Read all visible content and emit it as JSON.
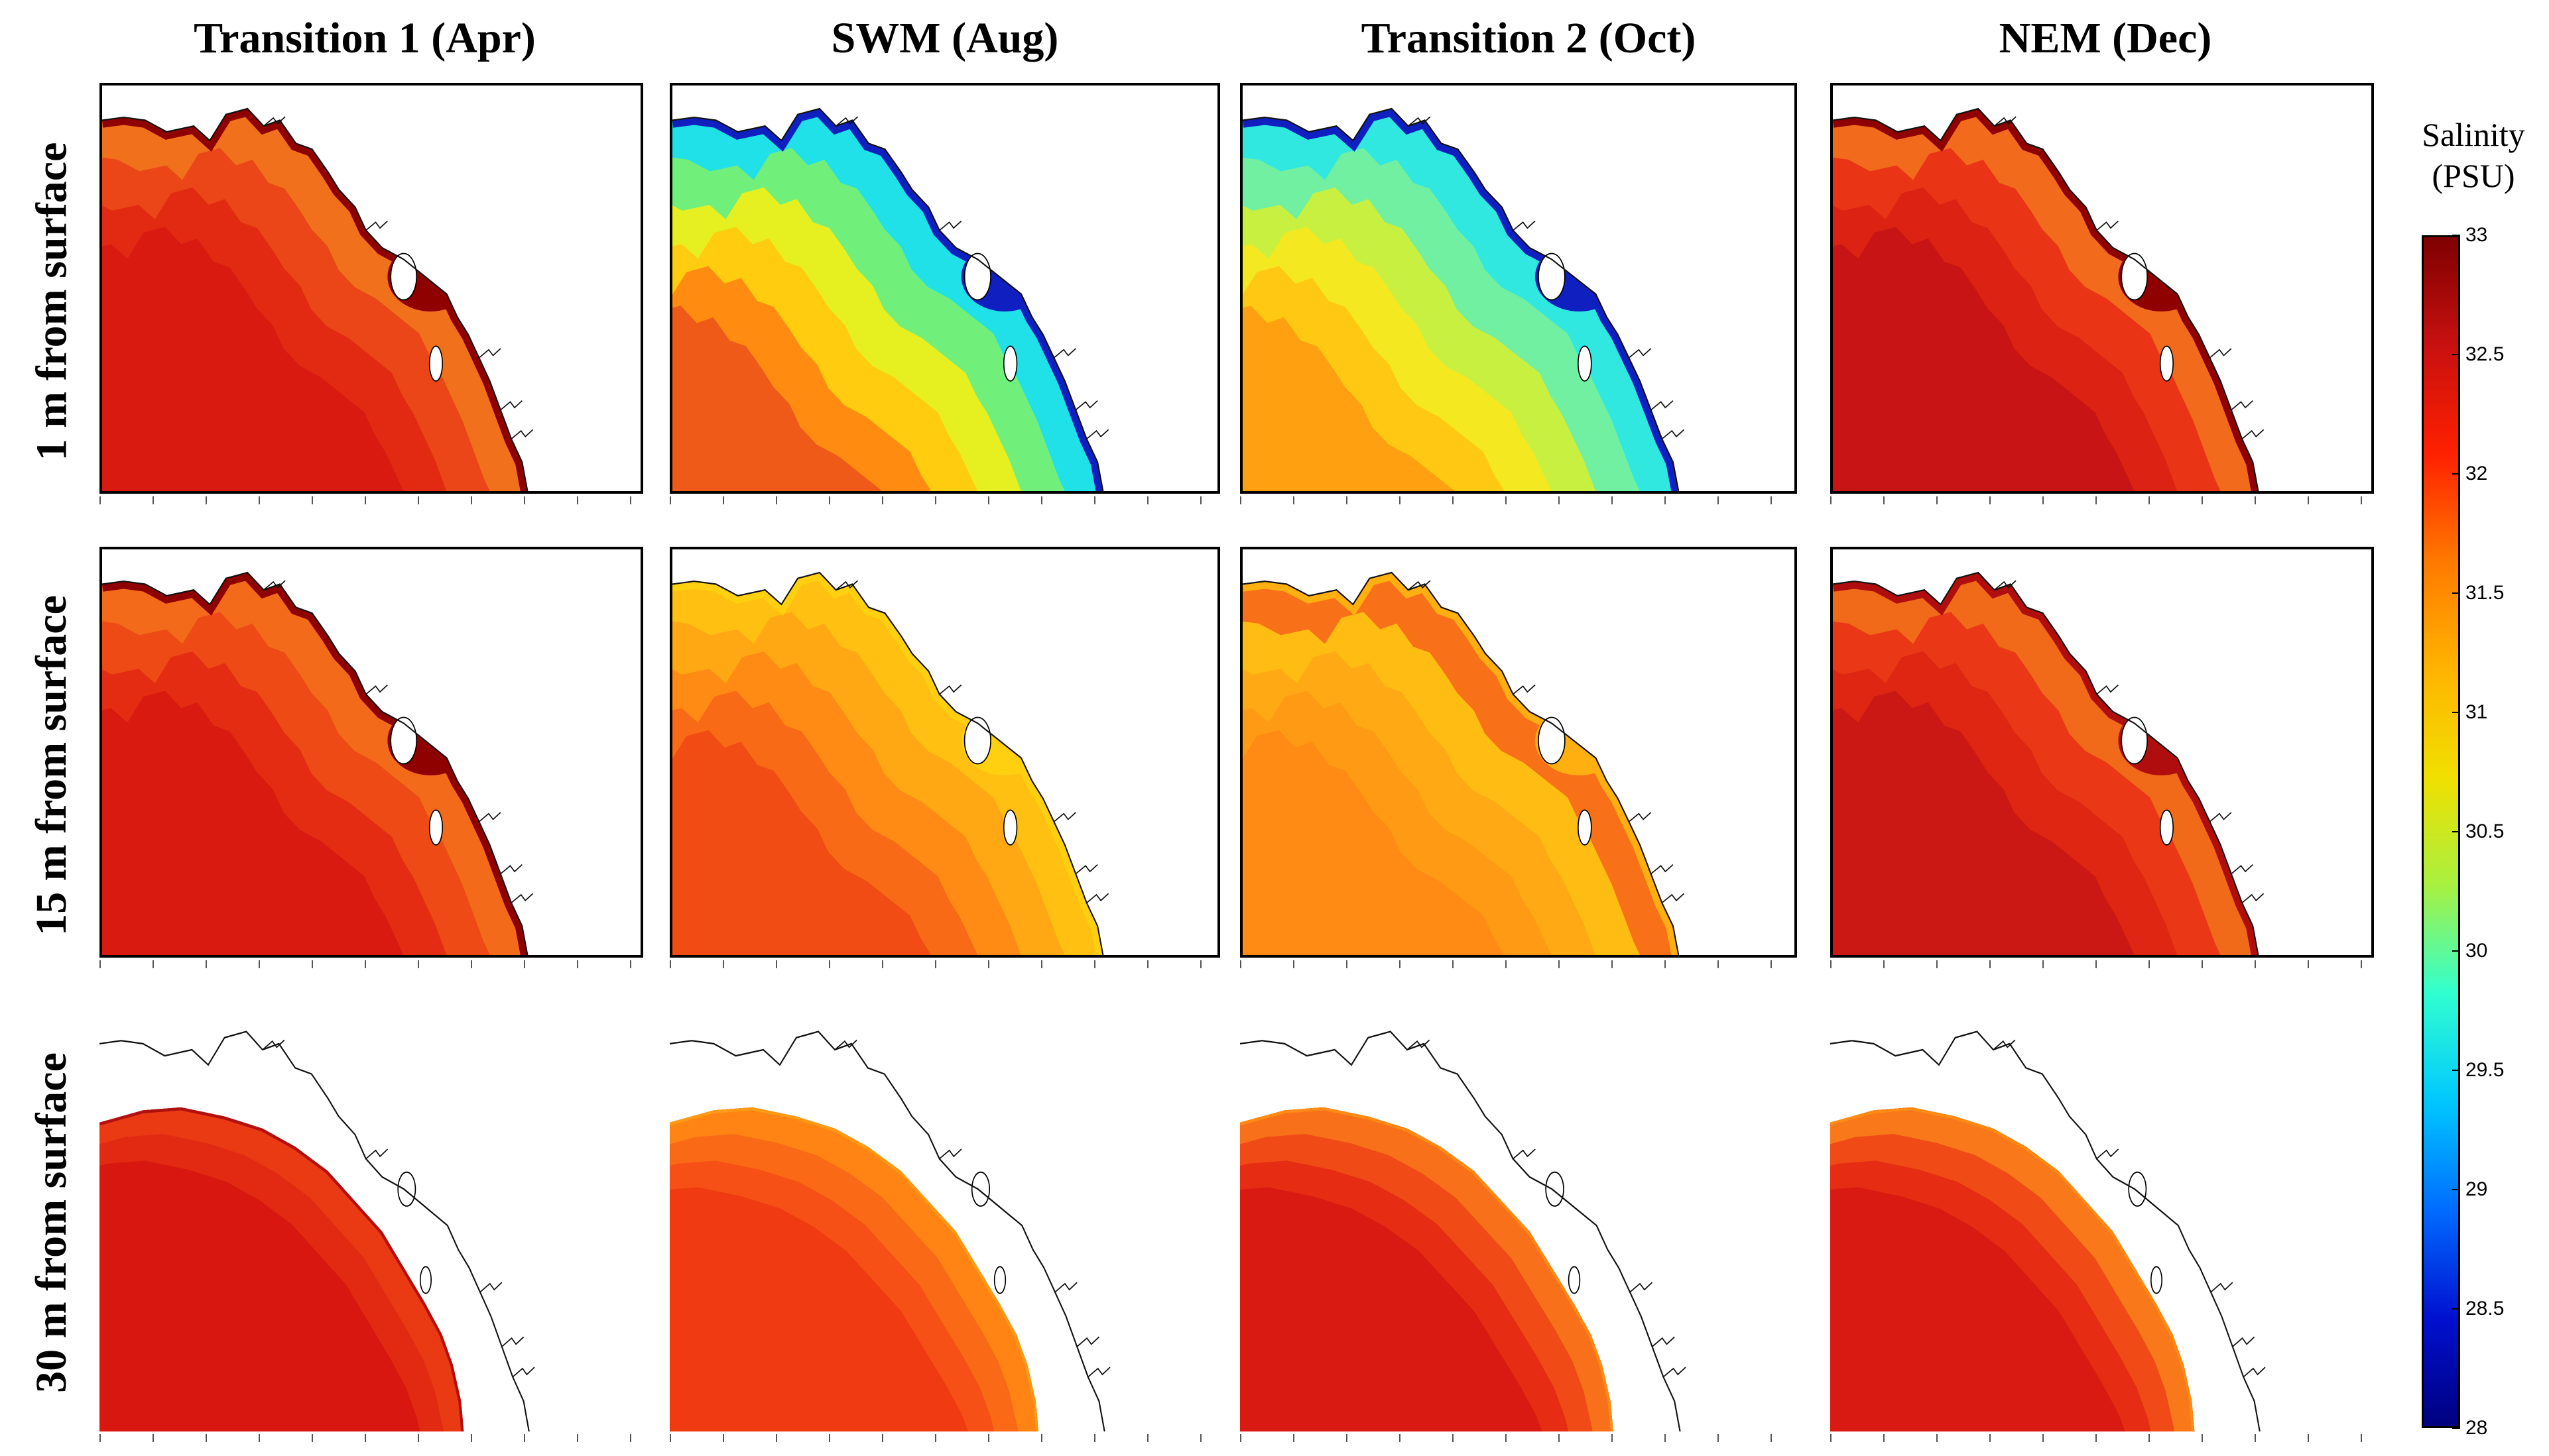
{
  "figure": {
    "columns": [
      "Transition 1 (Apr)",
      "SWM (Aug)",
      "Transition 2 (Oct)",
      "NEM (Dec)"
    ],
    "rows": [
      "1 m from surface",
      "15 m from surface",
      "30 m from surface"
    ]
  },
  "colorbar": {
    "title_line1": "Salinity",
    "title_line2": "(PSU)",
    "min": 28,
    "max": 33,
    "ticks": [
      "33",
      "32.5",
      "32",
      "31.5",
      "31",
      "30.5",
      "30",
      "29.5",
      "29",
      "28.5",
      "28"
    ],
    "colormap": "jet",
    "stops": [
      "#7f0000",
      "#c81010",
      "#ff2000",
      "#ff7a00",
      "#ffb400",
      "#f0e000",
      "#a8f040",
      "#30ffd0",
      "#00c8ff",
      "#006cff",
      "#0010d0",
      "#00007f"
    ]
  },
  "panels": [
    {
      "row": 0,
      "col": 0,
      "framed": true,
      "coast": "#8f0000",
      "colors": [
        "#d81a10",
        "#e22a12",
        "#ea4618",
        "#f0701c"
      ]
    },
    {
      "row": 0,
      "col": 1,
      "framed": true,
      "coast": "#1020c0",
      "colors": [
        "#f05a18",
        "#ff8c10",
        "#ffcc10",
        "#e6f020",
        "#70f07a",
        "#20e0e8"
      ]
    },
    {
      "row": 0,
      "col": 2,
      "framed": true,
      "coast": "#1020c0",
      "colors": [
        "#ffa010",
        "#ffc812",
        "#f4e820",
        "#c8f040",
        "#70f0a0",
        "#30e8e0"
      ]
    },
    {
      "row": 0,
      "col": 3,
      "framed": true,
      "coast": "#8f0000",
      "colors": [
        "#c81414",
        "#dc2212",
        "#ea3416",
        "#f26a1c"
      ]
    },
    {
      "row": 1,
      "col": 0,
      "framed": true,
      "coast": "#8f0000",
      "colors": [
        "#d81a10",
        "#e42c12",
        "#ee4a16",
        "#f26a1a"
      ]
    },
    {
      "row": 1,
      "col": 1,
      "framed": true,
      "coast": "#ffd010",
      "colors": [
        "#f04c14",
        "#f86a16",
        "#ff8a14",
        "#ffa814",
        "#ffc012"
      ]
    },
    {
      "row": 1,
      "col": 2,
      "framed": true,
      "coast": "#ffb010",
      "colors": [
        "#ff8a14",
        "#ff9a14",
        "#ffaa14",
        "#ffbc12",
        "#f87018"
      ]
    },
    {
      "row": 1,
      "col": 3,
      "framed": true,
      "coast": "#b00e0e",
      "colors": [
        "#cc1814",
        "#de2612",
        "#ea3816",
        "#f06a1a"
      ]
    },
    {
      "row": 2,
      "col": 0,
      "framed": false,
      "coast": "#b01010",
      "colors": [
        "#d81810",
        "#e22a12",
        "#ea3a14"
      ]
    },
    {
      "row": 2,
      "col": 1,
      "framed": false,
      "coast": "#ff9a14",
      "colors": [
        "#f03a12",
        "#f65016",
        "#fa6a16",
        "#ff8414"
      ]
    },
    {
      "row": 2,
      "col": 2,
      "framed": false,
      "coast": "#ff8a14",
      "colors": [
        "#d81a12",
        "#e62c12",
        "#f04a16",
        "#f8701a"
      ]
    },
    {
      "row": 2,
      "col": 3,
      "framed": false,
      "coast": "#ff8a14",
      "colors": [
        "#d81a12",
        "#e62c12",
        "#f04a16",
        "#f8781a"
      ]
    }
  ]
}
